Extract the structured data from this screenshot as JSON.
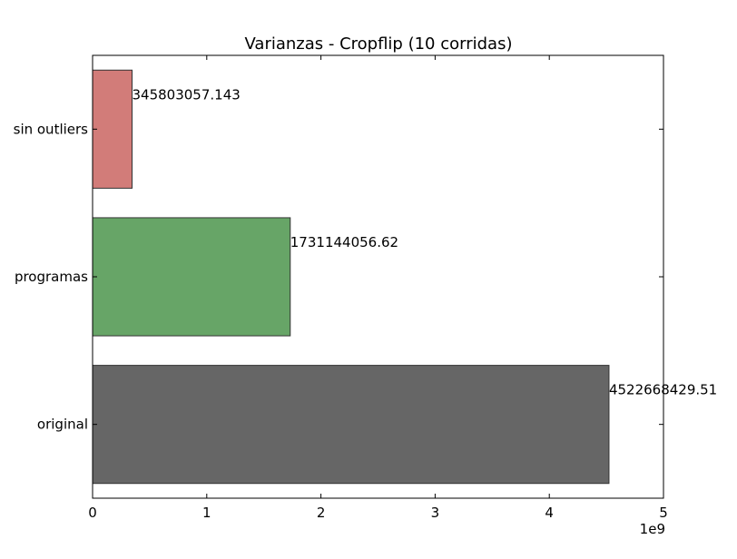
{
  "chart_data": {
    "type": "bar",
    "orientation": "horizontal",
    "title": "Varianzas - Cropflip (10 corridas)",
    "xlabel": "",
    "ylabel": "",
    "x_offset_label": "1e9",
    "categories": [
      "original",
      "programas",
      "sin outliers"
    ],
    "values": [
      4522668429.51,
      1731144056.62,
      345803057.143
    ],
    "value_labels": [
      "4522668429.51",
      "1731144056.62",
      "345803057.143"
    ],
    "colors": [
      "#666666",
      "#67a567",
      "#d27c79"
    ],
    "xlim": [
      0,
      5000000000
    ],
    "xticks": [
      0,
      1000000000,
      2000000000,
      3000000000,
      4000000000,
      5000000000
    ],
    "xtick_labels": [
      "0",
      "1",
      "2",
      "3",
      "4",
      "5"
    ],
    "grid": false,
    "legend": "none"
  }
}
